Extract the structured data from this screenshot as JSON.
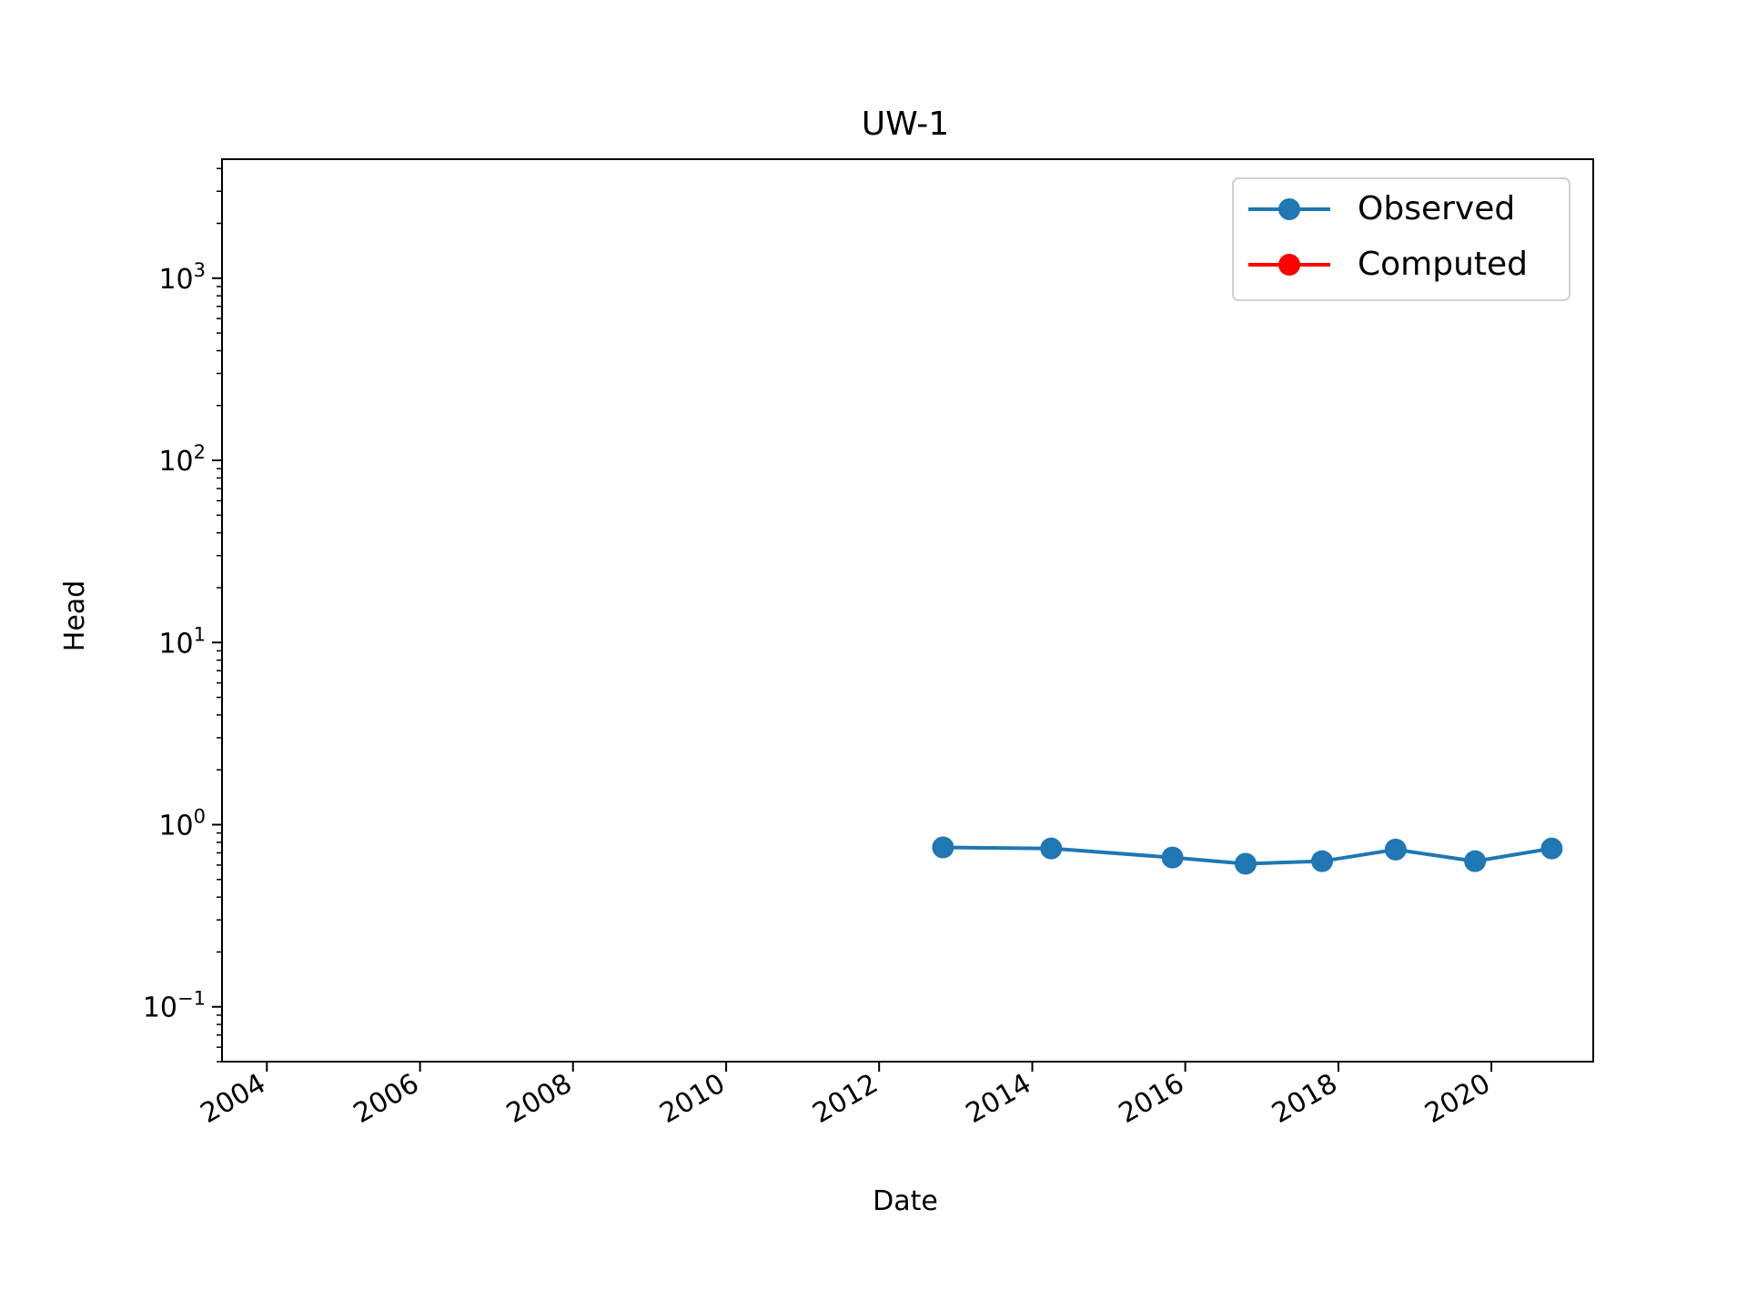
{
  "chart_data": {
    "type": "line",
    "title": "UW-1",
    "xlabel": "Date",
    "ylabel": "Head",
    "x_tick_labels": [
      "2004",
      "2006",
      "2008",
      "2010",
      "2012",
      "2014",
      "2016",
      "2018",
      "2020"
    ],
    "y_scale": "log",
    "y_tick_labels": [
      {
        "value": 0.1,
        "base": "10",
        "exp": "−1"
      },
      {
        "value": 1,
        "base": "10",
        "exp": "0"
      },
      {
        "value": 10,
        "base": "10",
        "exp": "1"
      },
      {
        "value": 100,
        "base": "10",
        "exp": "2"
      },
      {
        "value": 1000,
        "base": "10",
        "exp": "3"
      }
    ],
    "xlim": [
      "2003-06-01",
      "2021-05-01"
    ],
    "ylim": [
      0.05,
      4500
    ],
    "grid": false,
    "legend_position": "top-right",
    "series": [
      {
        "name": "Observed",
        "color": "#1f77b4",
        "x": [
          "2012-11-01",
          "2014-04-01",
          "2015-11-01",
          "2016-10-15",
          "2017-10-15",
          "2018-10-01",
          "2019-10-15",
          "2020-10-15"
        ],
        "y": [
          0.75,
          0.74,
          0.66,
          0.61,
          0.63,
          0.73,
          0.63,
          0.74
        ]
      },
      {
        "name": "Computed",
        "color": "#ff0000",
        "x": [],
        "y": []
      }
    ]
  }
}
